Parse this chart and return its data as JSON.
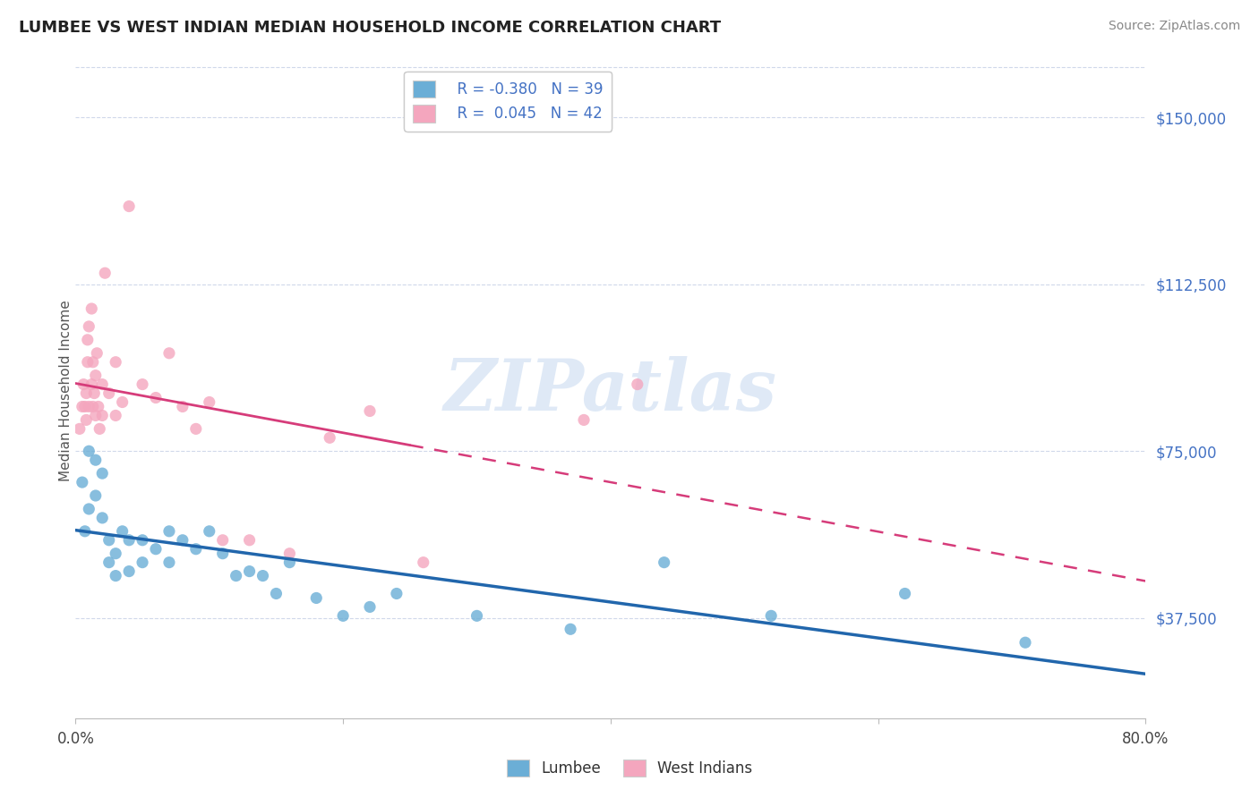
{
  "title": "LUMBEE VS WEST INDIAN MEDIAN HOUSEHOLD INCOME CORRELATION CHART",
  "source": "Source: ZipAtlas.com",
  "ylabel": "Median Household Income",
  "yticks": [
    37500,
    75000,
    112500,
    150000
  ],
  "ytick_labels": [
    "$37,500",
    "$75,000",
    "$112,500",
    "$150,000"
  ],
  "xlim": [
    0.0,
    0.8
  ],
  "ylim": [
    15000,
    162000
  ],
  "lumbee_R": -0.38,
  "lumbee_N": 39,
  "west_indian_R": 0.045,
  "west_indian_N": 42,
  "lumbee_color": "#6baed6",
  "west_indian_color": "#f4a6be",
  "lumbee_line_color": "#2166ac",
  "west_indian_line_color": "#d63c7a",
  "background_color": "#ffffff",
  "grid_color": "#d0d8ea",
  "watermark_color": "#c5d8f0",
  "lumbee_x": [
    0.005,
    0.007,
    0.01,
    0.01,
    0.015,
    0.015,
    0.02,
    0.02,
    0.025,
    0.025,
    0.03,
    0.03,
    0.035,
    0.04,
    0.04,
    0.05,
    0.05,
    0.06,
    0.07,
    0.07,
    0.08,
    0.09,
    0.1,
    0.11,
    0.12,
    0.13,
    0.14,
    0.15,
    0.16,
    0.18,
    0.2,
    0.22,
    0.24,
    0.3,
    0.37,
    0.44,
    0.52,
    0.62,
    0.71
  ],
  "lumbee_y": [
    68000,
    57000,
    62000,
    75000,
    73000,
    65000,
    70000,
    60000,
    55000,
    50000,
    52000,
    47000,
    57000,
    55000,
    48000,
    55000,
    50000,
    53000,
    57000,
    50000,
    55000,
    53000,
    57000,
    52000,
    47000,
    48000,
    47000,
    43000,
    50000,
    42000,
    38000,
    40000,
    43000,
    38000,
    35000,
    50000,
    38000,
    43000,
    32000
  ],
  "west_indian_x": [
    0.003,
    0.005,
    0.006,
    0.007,
    0.008,
    0.008,
    0.009,
    0.009,
    0.01,
    0.01,
    0.012,
    0.012,
    0.013,
    0.013,
    0.014,
    0.015,
    0.015,
    0.016,
    0.017,
    0.018,
    0.02,
    0.02,
    0.022,
    0.025,
    0.03,
    0.03,
    0.035,
    0.04,
    0.05,
    0.06,
    0.07,
    0.08,
    0.09,
    0.1,
    0.11,
    0.13,
    0.16,
    0.19,
    0.22,
    0.26,
    0.38,
    0.42
  ],
  "west_indian_y": [
    80000,
    85000,
    90000,
    85000,
    82000,
    88000,
    95000,
    100000,
    103000,
    85000,
    107000,
    90000,
    95000,
    85000,
    88000,
    92000,
    83000,
    97000,
    85000,
    80000,
    90000,
    83000,
    115000,
    88000,
    95000,
    83000,
    86000,
    130000,
    90000,
    87000,
    97000,
    85000,
    80000,
    86000,
    55000,
    55000,
    52000,
    78000,
    84000,
    50000,
    82000,
    90000
  ],
  "xtick_positions": [
    0.0,
    0.2,
    0.4,
    0.6,
    0.8
  ],
  "xtick_labels": [
    "0.0%",
    "",
    "",
    "",
    "80.0%"
  ]
}
